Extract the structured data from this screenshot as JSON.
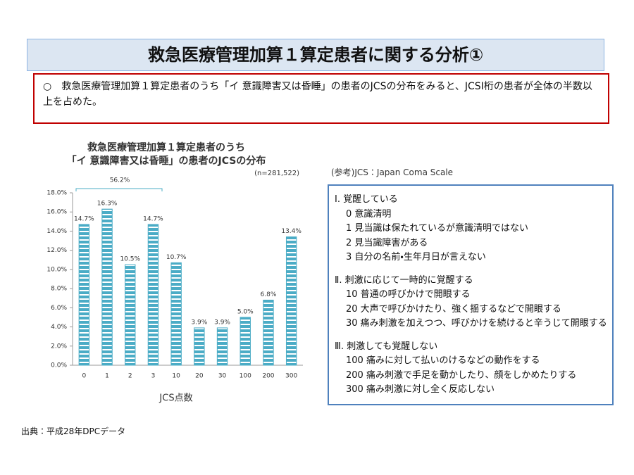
{
  "header": {
    "title": "救急医療管理加算１算定患者に関する分析①"
  },
  "summary": "○　救急医療管理加算１算定患者のうち「イ 意識障害又は昏睡」の患者のJCSの分布をみると、JCSⅠ桁の患者が全体の半数以上を占めた。",
  "chart_data": {
    "type": "bar",
    "title": [
      "救急医療管理加算１算定患者のうち",
      "「イ 意識障害又は昏睡」の患者のJCSの分布"
    ],
    "subtitle": "(n=281,522)",
    "x_label": "JCS点数",
    "categories": [
      "0",
      "1",
      "2",
      "3",
      "10",
      "20",
      "30",
      "100",
      "200",
      "300"
    ],
    "values": [
      14.7,
      16.3,
      10.5,
      14.7,
      10.7,
      3.9,
      3.9,
      5.0,
      6.8,
      13.4
    ],
    "value_labels": [
      "14.7%",
      "16.3%",
      "10.5%",
      "14.7%",
      "10.7%",
      "3.9%",
      "3.9%",
      "5.0%",
      "6.8%",
      "13.4%"
    ],
    "color": "#4bacc6",
    "ylim": [
      0,
      18
    ],
    "yticks": [
      {
        "value": 0,
        "label": "0.0%"
      },
      {
        "value": 2,
        "label": "2.0%"
      },
      {
        "value": 4,
        "label": "4.0%"
      },
      {
        "value": 6,
        "label": "6.0%"
      },
      {
        "value": 8,
        "label": "8.0%"
      },
      {
        "value": 10,
        "label": "10.0%"
      },
      {
        "value": 12,
        "label": "12.0%"
      },
      {
        "value": 14,
        "label": "14.0%"
      },
      {
        "value": 16,
        "label": "16.0%"
      },
      {
        "value": 18,
        "label": "18.0%"
      }
    ],
    "grid": false,
    "annotation": "56.2%"
  },
  "reference": {
    "heading": "(参考)JCS：Japan Coma Scale",
    "groups": [
      {
        "title": "Ⅰ. 覚醒している",
        "items": [
          "0  意識清明",
          "1  見当識は保たれているが意識清明ではない",
          "2  見当識障害がある",
          "3  自分の名前・生年月日が言えない"
        ]
      },
      {
        "title": "Ⅱ. 刺激に応じて一時的に覚醒する",
        "items": [
          "10  普通の呼びかけで開眼する",
          "20  大声で呼びかけたり、強く揺するなどで開眼する",
          "30  痛み刺激を加えつつ、呼びかけを続けると辛うじて開眼する"
        ]
      },
      {
        "title": "Ⅲ. 刺激しても覚醒しない",
        "items": [
          "100  痛みに対して払いのけるなどの動作をする",
          "200  痛み刺激で手足を動かしたり、顔をしかめたりする",
          "300  痛み刺激に対し全く反応しない"
        ]
      }
    ]
  },
  "source": "出典：平成28年DPCデータ"
}
